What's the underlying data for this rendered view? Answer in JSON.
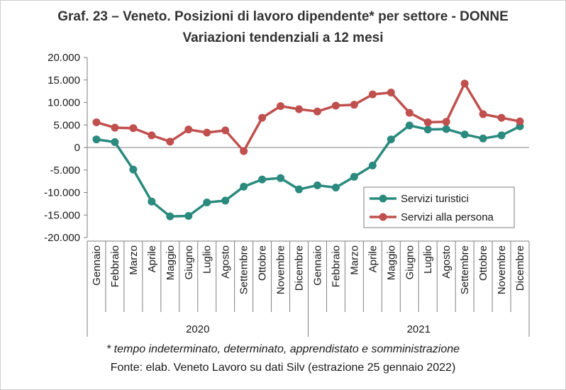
{
  "chart_data": {
    "type": "line",
    "title": "Graf. 23 – Veneto. Posizioni di lavoro dipendente* per settore - DONNE",
    "subtitle": "Variazioni tendenziali a 12 mesi",
    "xlabel": "",
    "ylabel": "",
    "ylim": [
      -20000,
      20000
    ],
    "yticks": [
      20000,
      15000,
      10000,
      5000,
      0,
      -5000,
      -10000,
      -15000,
      -20000
    ],
    "ytick_labels": [
      "20.000",
      "15.000",
      "10.000",
      "5.000",
      "0",
      "-5.000",
      "-10.000",
      "-15.000",
      "-20.000"
    ],
    "grid": false,
    "legend_position": "lower-right",
    "categories": [
      "Gennaio",
      "Febbraio",
      "Marzo",
      "Aprile",
      "Maggio",
      "Giugno",
      "Luglio",
      "Agosto",
      "Settembre",
      "Ottobre",
      "Novembre",
      "Dicembre",
      "Gennaio",
      "Febbraio",
      "Marzo",
      "Aprile",
      "Maggio",
      "Giugno",
      "Luglio",
      "Agosto",
      "Settembre",
      "Ottobre",
      "Novembre",
      "Dicembre"
    ],
    "year_groups": [
      {
        "label": "2020",
        "count": 12
      },
      {
        "label": "2021",
        "count": 12
      }
    ],
    "series": [
      {
        "name": "Servizi turistici",
        "color": "#2a8a7e",
        "values": [
          1800,
          1200,
          -4900,
          -12000,
          -15300,
          -15200,
          -12200,
          -11800,
          -8700,
          -7100,
          -6800,
          -9300,
          -8400,
          -8900,
          -6500,
          -4000,
          1800,
          4900,
          4000,
          4100,
          2900,
          2000,
          2700,
          4700
        ]
      },
      {
        "name": "Servizi alla persona",
        "color": "#c0504d",
        "values": [
          5600,
          4400,
          4300,
          2700,
          1300,
          4000,
          3300,
          3800,
          -800,
          6600,
          9200,
          8500,
          8000,
          9300,
          9500,
          11800,
          12200,
          7700,
          5600,
          5700,
          14200,
          7400,
          6600,
          5800
        ]
      }
    ]
  },
  "footnote": "* tempo indeterminato, determinato, apprendistato e somministrazione",
  "source": "Fonte: elab. Veneto Lavoro su dati Silv (estrazione 25 gennaio 2022)"
}
